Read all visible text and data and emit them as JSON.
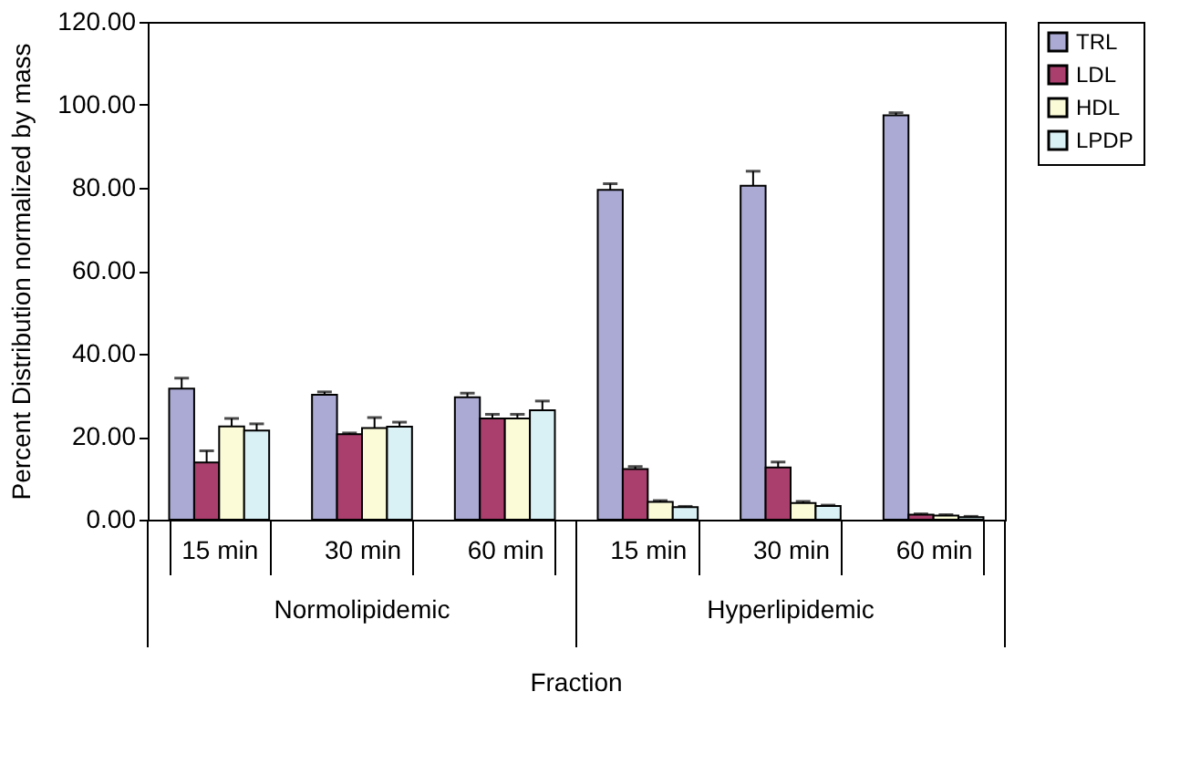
{
  "chart_data": {
    "type": "bar",
    "xlabel": "Fraction",
    "ylabel": "Percent Distribution normalized by mass",
    "categories": [
      "15 min",
      "30 min",
      "60 min",
      "15 min",
      "30 min",
      "60 min"
    ],
    "series": [
      {
        "name": "TRL",
        "color": "#aaaad4",
        "values": [
          31.6,
          30.1,
          29.5,
          79.5,
          80.5,
          97.5
        ],
        "errors": [
          2.5,
          0.7,
          1.0,
          1.5,
          3.5,
          0.6
        ]
      },
      {
        "name": "LDL",
        "color": "#aa3f6e",
        "values": [
          13.8,
          20.6,
          24.4,
          12.2,
          12.6,
          1.2
        ],
        "errors": [
          2.8,
          0.3,
          1.0,
          0.6,
          1.3,
          0.2
        ]
      },
      {
        "name": "HDL",
        "color": "#fbfbd8",
        "values": [
          22.5,
          22.1,
          24.4,
          4.3,
          4.0,
          1.0
        ],
        "errors": [
          1.9,
          2.5,
          1.0,
          0.3,
          0.4,
          0.2
        ]
      },
      {
        "name": "LPDP",
        "color": "#d9f0f5",
        "values": [
          21.5,
          22.4,
          26.4,
          3.0,
          3.3,
          0.6
        ],
        "errors": [
          1.6,
          1.1,
          2.2,
          0.2,
          0.2,
          0.2
        ]
      }
    ],
    "ylim": [
      0,
      120
    ],
    "yticks": [
      {
        "value": 0,
        "label": "0.00"
      },
      {
        "value": 20,
        "label": "20.00"
      },
      {
        "value": 40,
        "label": "40.00"
      },
      {
        "value": 60,
        "label": "60.00"
      },
      {
        "value": 80,
        "label": "80.00"
      },
      {
        "value": 100,
        "label": "100.00"
      },
      {
        "value": 120,
        "label": "120.00"
      }
    ],
    "annotations": [
      "Normolipidemic",
      "Hyperlipidemic"
    ],
    "legend": "right",
    "grid": false
  }
}
